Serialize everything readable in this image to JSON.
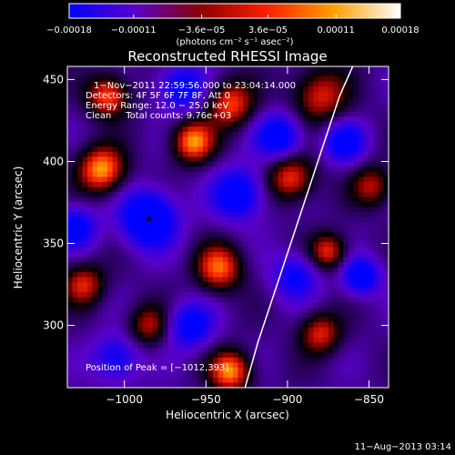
{
  "chart_data": {
    "type": "heatmap",
    "title": "Reconstructed RHESSI Image",
    "xlabel": "Heliocentric X (arcsec)",
    "ylabel": "Heliocentric Y (arcsec)",
    "xlim": [
      -1035,
      -838
    ],
    "ylim": [
      262,
      458
    ],
    "x_ticks": [
      -1000,
      -950,
      -900,
      -850
    ],
    "x_tick_labels": [
      "−1000",
      "−950",
      "−900",
      "−850"
    ],
    "y_ticks": [
      300,
      350,
      400,
      450
    ],
    "y_tick_labels": [
      "300",
      "350",
      "400",
      "450"
    ],
    "colorbar": {
      "range": [
        -0.00018,
        0.00018
      ],
      "ticks": [
        -0.00018,
        -0.00011,
        -3.6e-05,
        3.6e-05,
        0.00011,
        0.00018
      ],
      "tick_labels": [
        "−0.00018",
        "−0.00011",
        "−3.6e−05",
        "3.6e−05",
        "0.00011",
        "0.00018"
      ],
      "unit_label": "(photons cm⁻² s⁻¹ asec⁻²)",
      "colors": [
        "#0000ff",
        "#5a00c8",
        "#8b0000",
        "#ff2000",
        "#ffa000",
        "#ffffff"
      ]
    },
    "annotations": {
      "time_range": "1−Nov−2011 22:59:56.000 to 23:04:14.000",
      "detectors": "Detectors: 4F 5F 6F 7F 8F, Att 0",
      "energy_range": "Energy Range: 12.0 − 25.0 keV",
      "clean_counts": "Clean     Total counts: 9.76e+03",
      "peak_position": "Position of Peak = [−1012,393]"
    },
    "peak": {
      "x": -1012,
      "y": 393
    },
    "marker": {
      "x": -985,
      "y": 365
    },
    "limb_curve": [
      [
        -926,
        262
      ],
      [
        -918,
        290
      ],
      [
        -908,
        320
      ],
      [
        -898,
        350
      ],
      [
        -888,
        380
      ],
      [
        -878,
        410
      ],
      [
        -868,
        440
      ],
      [
        -860,
        458
      ]
    ],
    "blobs": [
      {
        "x": -1014,
        "y": 395,
        "a": 1.0,
        "r": 10
      },
      {
        "x": -958,
        "y": 412,
        "a": 0.95,
        "r": 9
      },
      {
        "x": -935,
        "y": 435,
        "a": 0.8,
        "r": 10
      },
      {
        "x": -1010,
        "y": 440,
        "a": 0.85,
        "r": 9
      },
      {
        "x": -880,
        "y": 440,
        "a": 0.7,
        "r": 12
      },
      {
        "x": -942,
        "y": 335,
        "a": 0.85,
        "r": 10
      },
      {
        "x": -898,
        "y": 390,
        "a": 0.8,
        "r": 10
      },
      {
        "x": -875,
        "y": 345,
        "a": 0.75,
        "r": 8
      },
      {
        "x": -935,
        "y": 272,
        "a": 0.95,
        "r": 9
      },
      {
        "x": -1025,
        "y": 325,
        "a": 0.7,
        "r": 9
      },
      {
        "x": -880,
        "y": 295,
        "a": 0.7,
        "r": 9
      },
      {
        "x": -985,
        "y": 300,
        "a": 0.6,
        "r": 9
      },
      {
        "x": -848,
        "y": 385,
        "a": 0.6,
        "r": 9
      },
      {
        "x": -985,
        "y": 365,
        "a": -1.0,
        "r": 12
      },
      {
        "x": -905,
        "y": 415,
        "a": -0.8,
        "r": 10
      },
      {
        "x": -965,
        "y": 445,
        "a": -0.7,
        "r": 10
      },
      {
        "x": -930,
        "y": 380,
        "a": -0.8,
        "r": 11
      },
      {
        "x": -1030,
        "y": 360,
        "a": -0.7,
        "r": 9
      },
      {
        "x": -960,
        "y": 300,
        "a": -0.7,
        "r": 10
      },
      {
        "x": -895,
        "y": 330,
        "a": -0.6,
        "r": 10
      },
      {
        "x": -855,
        "y": 330,
        "a": -0.8,
        "r": 8
      },
      {
        "x": -1005,
        "y": 280,
        "a": -0.6,
        "r": 10
      },
      {
        "x": -865,
        "y": 412,
        "a": -0.7,
        "r": 9
      }
    ]
  },
  "footer": {
    "date_stamp": "11−Aug−2013 03:14"
  }
}
